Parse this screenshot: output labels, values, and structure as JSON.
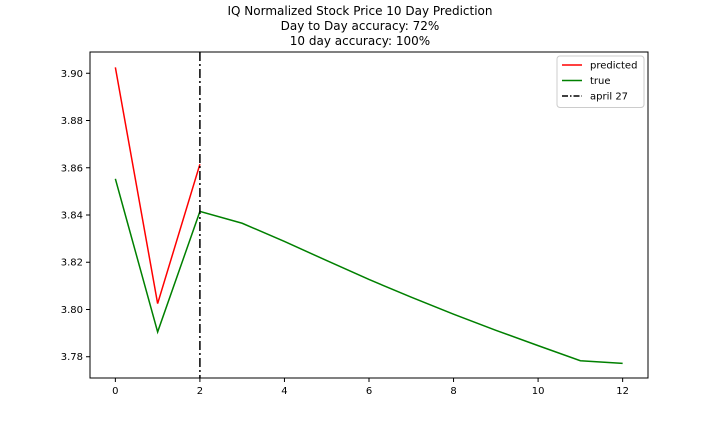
{
  "chart_data": {
    "type": "line",
    "title_lines": [
      "IQ Normalized Stock Price 10 Day Prediction",
      "Day to Day accuracy: 72%",
      "10 day accuracy: 100%"
    ],
    "xlabel": "",
    "ylabel": "",
    "xlim": [
      -0.6,
      12.6
    ],
    "ylim": [
      3.771,
      3.909
    ],
    "xticks": [
      0,
      2,
      4,
      6,
      8,
      10,
      12
    ],
    "yticks": [
      3.78,
      3.8,
      3.82,
      3.84,
      3.86,
      3.88,
      3.9
    ],
    "ytick_labels": [
      "3.78",
      "3.80",
      "3.82",
      "3.84",
      "3.86",
      "3.88",
      "3.90"
    ],
    "series": [
      {
        "name": "predicted",
        "color": "#ff0000",
        "style": "solid",
        "x": [
          0,
          1,
          2
        ],
        "y": [
          3.9025,
          3.8025,
          3.8615
        ]
      },
      {
        "name": "true",
        "color": "#008000",
        "style": "solid",
        "x": [
          0,
          1,
          2,
          3,
          4,
          5,
          6,
          7,
          8,
          9,
          10,
          11,
          12
        ],
        "y": [
          3.8553,
          3.7905,
          3.8415,
          3.8365,
          3.8288,
          3.8207,
          3.8127,
          3.8052,
          3.798,
          3.7912,
          3.7847,
          3.7783,
          3.7772
        ]
      }
    ],
    "vlines": [
      {
        "name": "april 27",
        "x": 2,
        "color": "#000000",
        "style": "dashdot"
      }
    ],
    "legend_position": "top-right",
    "grid": false
  }
}
